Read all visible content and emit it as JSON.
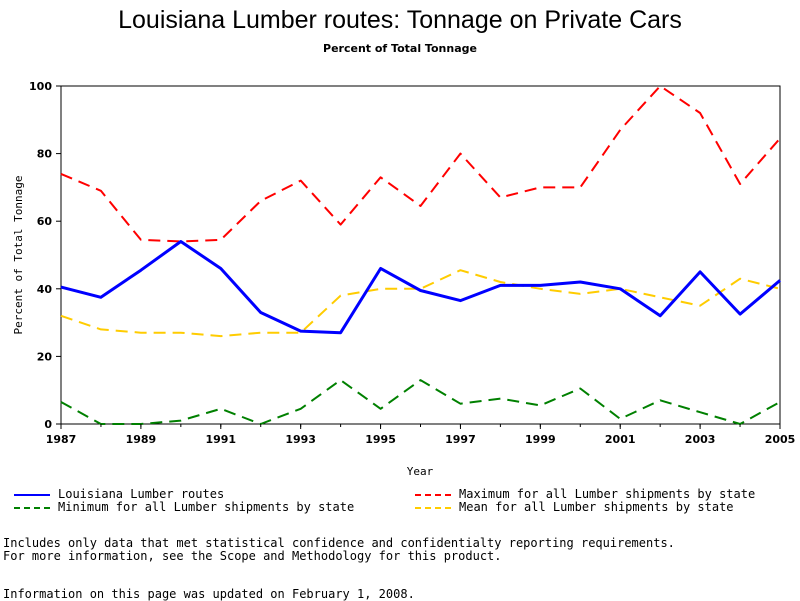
{
  "chart_data": {
    "type": "line",
    "title": "Louisiana Lumber routes: Tonnage on Private Cars",
    "subtitle": "Percent of Total Tonnage",
    "xlabel": "Year",
    "ylabel": "Percent of Total Tonnage",
    "xlim": [
      1987,
      2005
    ],
    "ylim": [
      0,
      100
    ],
    "xticks": [
      "1987",
      "1989",
      "1991",
      "1993",
      "1995",
      "1997",
      "1999",
      "2001",
      "2003",
      "2005"
    ],
    "yticks": [
      "0",
      "20",
      "40",
      "60",
      "80",
      "100"
    ],
    "x": [
      1987,
      1988,
      1989,
      1990,
      1991,
      1992,
      1993,
      1994,
      1995,
      1996,
      1997,
      1998,
      1999,
      2000,
      2001,
      2002,
      2003,
      2004,
      2005
    ],
    "series": [
      {
        "name": "Louisiana Lumber routes",
        "color": "#0000ff",
        "dash": "solid",
        "values": [
          40.5,
          37.5,
          45.5,
          54,
          46,
          33,
          27.5,
          27,
          46,
          39.5,
          36.5,
          41,
          41,
          42,
          40,
          32,
          45,
          32.5,
          42.5
        ]
      },
      {
        "name": "Maximum for all Lumber shipments by state",
        "color": "#ff0000",
        "dash": "dashed",
        "values": [
          74,
          69,
          54.5,
          54,
          54.5,
          66,
          72,
          59,
          73,
          64.5,
          80,
          67,
          70,
          70,
          87,
          100,
          92,
          71,
          84.5
        ]
      },
      {
        "name": "Minimum for all Lumber shipments by state",
        "color": "#008000",
        "dash": "dashed",
        "values": [
          6.5,
          0,
          0,
          1,
          4.5,
          0,
          4.5,
          13,
          4.5,
          13,
          6,
          7.5,
          5.5,
          10.5,
          1.5,
          7,
          3.5,
          0,
          6.5
        ]
      },
      {
        "name": "Mean for all Lumber shipments by state",
        "color": "#ffcc00",
        "dash": "dashed",
        "values": [
          32,
          28,
          27,
          27,
          26,
          27,
          27,
          38,
          40,
          40,
          45.5,
          42,
          40,
          38.5,
          40,
          37.5,
          35,
          43,
          40
        ]
      }
    ],
    "grid": false,
    "legend_position": "bottom"
  },
  "notes": {
    "line1": "Includes only data that met statistical confidence and confidentialty reporting requirements.",
    "line2": "For more information, see the Scope and Methodology for this product.",
    "updated": "Information on this page was updated on February 1, 2008."
  }
}
